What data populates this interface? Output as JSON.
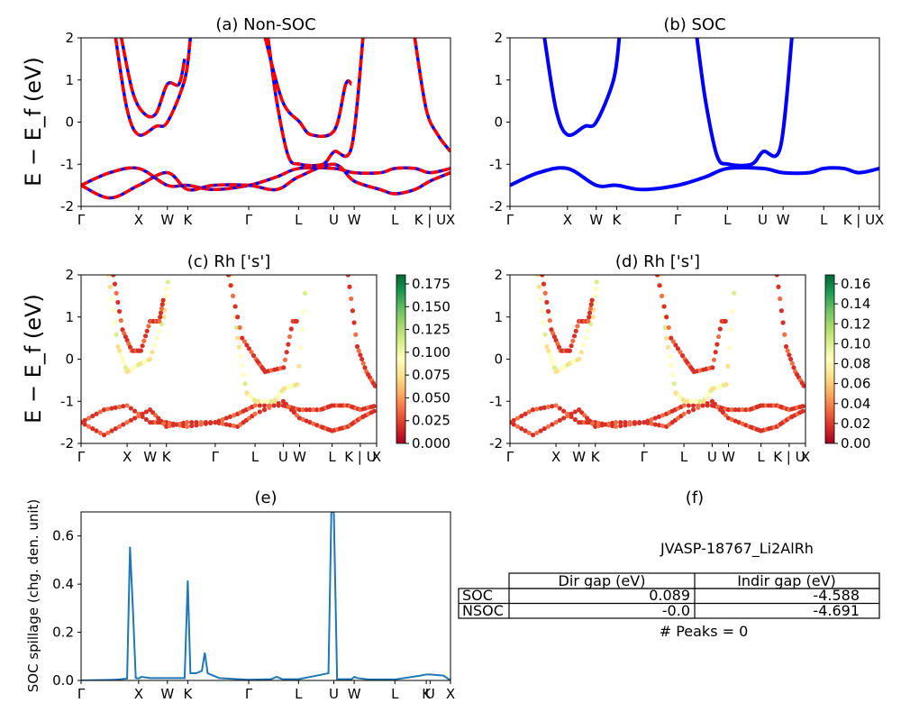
{
  "figure": {
    "ylabel_energy": "E − E_f (eV)",
    "path_labels_full": [
      "Γ",
      "X",
      "W",
      "K",
      "Γ",
      "L",
      "U",
      "W",
      "L",
      "K | U",
      "X"
    ],
    "path_positions": [
      0,
      1.0,
      1.5,
      1.854,
      2.914,
      3.78,
      4.393,
      4.747,
      5.454,
      6.067,
      6.421
    ]
  },
  "panel_a": {
    "title": "(a) Non-SOC"
  },
  "panel_b": {
    "title": "(b) SOC"
  },
  "panel_c": {
    "title": "(c)  Rh ['s']",
    "colorbar_ticks": [
      "0.175",
      "0.150",
      "0.125",
      "0.100",
      "0.075",
      "0.050",
      "0.025",
      "0.000"
    ]
  },
  "panel_d": {
    "title": "(d) Rh ['s']",
    "colorbar_ticks": [
      "0.16",
      "0.14",
      "0.12",
      "0.10",
      "0.08",
      "0.06",
      "0.04",
      "0.02",
      "0.00"
    ]
  },
  "panel_e": {
    "title": "(e)",
    "ylabel": "SOC spillage (chg. den. unit)",
    "xticks": [
      "Γ",
      "X",
      "W",
      "K",
      "Γ",
      "L",
      "U",
      "W",
      "L",
      "K",
      "U",
      "X"
    ]
  },
  "panel_f": {
    "title": "(f)",
    "material": "JVASP-18767_Li2AlRh",
    "table": {
      "headers": [
        "Dir gap (eV)",
        "Indir gap (eV)"
      ],
      "rows": [
        {
          "label": "SOC",
          "dir": "0.089",
          "indir": "-4.588"
        },
        {
          "label": "NSOC",
          "dir": "-0.0",
          "indir": "-4.691"
        }
      ]
    },
    "peaks": "# Peaks = 0"
  },
  "chart_data": [
    {
      "type": "line",
      "title": "(a) Non-SOC",
      "ylabel": "E − E_f (eV)",
      "ylim": [
        -2,
        2
      ],
      "yticks": [
        -2,
        -1,
        0,
        1,
        2
      ],
      "x_ticks": [
        "Γ",
        "X",
        "W",
        "K",
        "Γ",
        "L",
        "U",
        "W",
        "L",
        "K | U",
        "X"
      ],
      "series": [
        {
          "x": [
            0,
            0.5,
            1.0,
            1.5,
            1.854,
            2.3,
            2.914,
            3.4,
            3.78,
            4.393,
            4.747,
            5.2,
            5.454,
            5.8,
            6.067,
            6.421
          ],
          "y": [
            -1.5,
            -1.2,
            -1.1,
            -1.5,
            -1.5,
            -1.6,
            -1.5,
            -1.3,
            -1.1,
            -1.1,
            -1.2,
            -1.2,
            -1.1,
            -1.1,
            -1.2,
            -1.1
          ]
        },
        {
          "x": [
            0,
            0.5,
            1.0,
            1.5,
            1.854,
            2.3,
            2.914,
            3.4,
            3.78,
            4.393,
            4.747,
            5.2,
            5.454,
            5.8,
            6.067,
            6.421
          ],
          "y": [
            -1.5,
            -1.8,
            -1.5,
            -1.2,
            -1.6,
            -1.5,
            -1.5,
            -1.6,
            -1.3,
            -1.0,
            -1.4,
            -1.6,
            -1.7,
            -1.6,
            -1.4,
            -1.2
          ]
        },
        {
          "x": [
            0.6,
            0.8,
            1.0,
            1.3,
            1.5,
            1.8,
            1.9
          ],
          "y": [
            2.0,
            0.3,
            -0.3,
            -0.1,
            0.0,
            1.0,
            2.0
          ]
        },
        {
          "x": [
            0.7,
            0.9,
            1.1,
            1.3,
            1.5,
            1.7,
            1.8
          ],
          "y": [
            2.0,
            0.7,
            0.2,
            0.2,
            0.9,
            0.9,
            1.5
          ]
        },
        {
          "x": [
            3.25,
            3.4,
            3.6,
            3.8,
            4.2,
            4.4,
            4.7,
            4.9
          ],
          "y": [
            2.0,
            0.5,
            -0.8,
            -1.0,
            -1.0,
            -0.7,
            -0.6,
            2.0
          ]
        },
        {
          "x": [
            3.2,
            3.5,
            3.8,
            4.0,
            4.4,
            4.6,
            4.7
          ],
          "y": [
            2.0,
            0.5,
            0.0,
            -0.3,
            -0.2,
            0.9,
            0.9
          ]
        },
        {
          "x": [
            5.8,
            6.0,
            6.2,
            6.421
          ],
          "y": [
            2.0,
            0.3,
            -0.3,
            -0.7
          ]
        }
      ]
    },
    {
      "type": "line",
      "title": "(b) SOC",
      "ylim": [
        -2,
        2
      ],
      "yticks": [
        -2,
        -1,
        0,
        1,
        2
      ],
      "x_ticks": [
        "Γ",
        "X",
        "W",
        "K",
        "Γ",
        "L",
        "U",
        "W",
        "L",
        "K | U",
        "X"
      ],
      "series": [
        {
          "x": [
            0,
            0.5,
            1.0,
            1.5,
            1.854,
            2.3,
            2.914,
            3.4,
            3.78,
            4.393,
            4.747,
            5.2,
            5.454,
            5.8,
            6.067,
            6.421
          ],
          "y": [
            -1.5,
            -1.2,
            -1.1,
            -1.5,
            -1.5,
            -1.6,
            -1.5,
            -1.3,
            -1.1,
            -1.1,
            -1.2,
            -1.2,
            -1.1,
            -1.1,
            -1.2,
            -1.1
          ]
        },
        {
          "x": [
            0.6,
            0.8,
            1.0,
            1.3,
            1.5,
            1.8,
            1.9
          ],
          "y": [
            2.0,
            0.3,
            -0.3,
            -0.1,
            0.0,
            1.0,
            2.0
          ]
        },
        {
          "x": [
            3.25,
            3.4,
            3.6,
            3.8,
            4.2,
            4.4,
            4.7,
            4.9
          ],
          "y": [
            2.0,
            0.5,
            -0.8,
            -1.0,
            -1.0,
            -0.7,
            -0.6,
            2.0
          ]
        }
      ]
    },
    {
      "type": "scatter",
      "title": "(c)  Rh ['s']",
      "ylim": [
        -2,
        2
      ],
      "colorbar_range": [
        0.0,
        0.175
      ]
    },
    {
      "type": "scatter",
      "title": "(d) Rh ['s']",
      "ylim": [
        -2,
        2
      ],
      "colorbar_range": [
        0.0,
        0.16
      ]
    },
    {
      "type": "line",
      "title": "(e)",
      "ylabel": "SOC spillage (chg. den. unit)",
      "ylim": [
        0,
        0.7
      ],
      "yticks": [
        0.0,
        0.2,
        0.4,
        0.6
      ],
      "xticks": [
        "Γ",
        "X",
        "W",
        "K",
        "Γ",
        "L",
        "U",
        "W",
        "L",
        "K",
        "U",
        "X"
      ],
      "series": [
        {
          "x": [
            0,
            0.6,
            0.8,
            0.85,
            0.9,
            0.95,
            1.0,
            1.05,
            1.2,
            1.5,
            1.8,
            1.854,
            1.9,
            2.0,
            2.1,
            2.15,
            2.2,
            2.4,
            2.914,
            3.3,
            3.4,
            3.5,
            3.78,
            4.2,
            4.3,
            4.35,
            4.393,
            4.45,
            4.7,
            4.75,
            4.8,
            5.0,
            5.454,
            5.9,
            6.0,
            6.067,
            6.2,
            6.3,
            6.421
          ],
          "y": [
            0,
            0.003,
            0.008,
            0.555,
            0.3,
            0.01,
            0.008,
            0.015,
            0.01,
            0.01,
            0.01,
            0.415,
            0.03,
            0.03,
            0.04,
            0.115,
            0.03,
            0.01,
            0.003,
            0.005,
            0.015,
            0.005,
            0.005,
            0.025,
            0.03,
            0.7,
            0.7,
            0.005,
            0.005,
            0.015,
            0.01,
            0.004,
            0.004,
            0.02,
            0.025,
            0.025,
            0.022,
            0.02,
            0.0
          ]
        }
      ]
    }
  ]
}
